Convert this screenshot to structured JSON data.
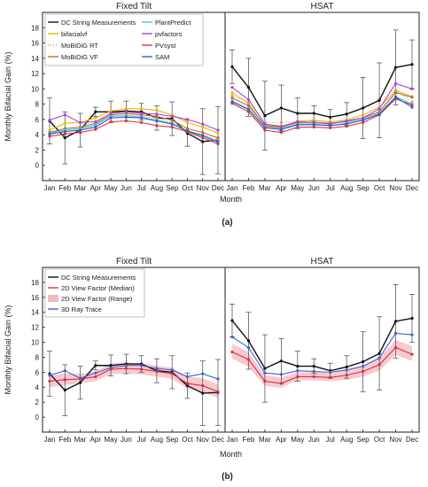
{
  "chart_data": [
    {
      "type": "line",
      "panel_label": "(a)",
      "subplots": [
        "Fixed Tilt",
        "HSAT"
      ],
      "xlabel": "Month",
      "ylabel": "Monthly Bifacial Gain (%)",
      "x": [
        "Jan",
        "Feb",
        "Mar",
        "Apr",
        "May",
        "Jun",
        "Jul",
        "Aug",
        "Sep",
        "Oct",
        "Nov",
        "Dec"
      ],
      "ylim": [
        -2,
        20
      ],
      "yticks": [
        0,
        2,
        4,
        6,
        8,
        10,
        12,
        14,
        16,
        18
      ],
      "grid": false,
      "legend_position": "top-left",
      "series": [
        {
          "name": "DC String Measurements",
          "color": "#111111",
          "dash": "",
          "fixed": [
            5.8,
            3.6,
            4.6,
            7.0,
            7.0,
            7.1,
            7.0,
            6.2,
            6.1,
            4.2,
            3.1,
            3.3
          ],
          "fixed_err": [
            3.0,
            3.4,
            2.2,
            0.6,
            1.4,
            1.3,
            1.1,
            1.6,
            2.2,
            1.7,
            4.3,
            4.4
          ],
          "hsat": [
            12.9,
            10.2,
            6.5,
            7.5,
            6.8,
            6.8,
            6.3,
            6.7,
            7.5,
            8.5,
            12.8,
            13.2
          ],
          "hsat_err": [
            2.2,
            3.8,
            4.5,
            3.0,
            2.0,
            1.0,
            1.0,
            1.5,
            4.0,
            4.9,
            4.9,
            3.2
          ]
        },
        {
          "name": "bifacialvf",
          "color": "#e8b800",
          "dash": "",
          "fixed": [
            4.6,
            5.5,
            5.6,
            6.2,
            7.1,
            7.4,
            7.4,
            7.2,
            6.6,
            5.6,
            5.0,
            4.2
          ],
          "hsat": [
            9.5,
            8.1,
            5.1,
            4.9,
            5.8,
            5.9,
            5.7,
            5.9,
            6.6,
            7.6,
            9.8,
            9.0
          ]
        },
        {
          "name": "MoBiDiG RT",
          "color": "#d4a060",
          "dash": "1,2",
          "fixed": [
            4.0,
            4.5,
            4.7,
            5.1,
            6.5,
            6.7,
            6.4,
            6.2,
            5.6,
            4.6,
            4.0,
            3.4
          ],
          "hsat": [
            9.1,
            8.2,
            5.6,
            5.6,
            5.7,
            5.7,
            5.6,
            5.9,
            6.2,
            7.0,
            9.8,
            8.3
          ]
        },
        {
          "name": "MoBiDiG VF",
          "color": "#b87030",
          "dash": "",
          "fixed": [
            4.3,
            4.8,
            5.0,
            5.5,
            6.6,
            6.8,
            6.6,
            6.4,
            5.9,
            4.8,
            4.3,
            3.6
          ],
          "hsat": [
            8.8,
            7.8,
            5.2,
            5.0,
            5.6,
            5.6,
            5.5,
            5.7,
            6.2,
            7.0,
            9.5,
            8.9
          ]
        },
        {
          "name": "PlantPredict",
          "color": "#40c8e0",
          "dash": "",
          "fixed": [
            4.2,
            4.6,
            4.8,
            5.3,
            6.4,
            6.5,
            6.3,
            5.9,
            5.5,
            4.4,
            3.8,
            3.0
          ],
          "hsat": [
            8.4,
            7.4,
            5.0,
            4.8,
            5.4,
            5.4,
            5.2,
            5.5,
            6.0,
            6.8,
            9.0,
            8.0
          ]
        },
        {
          "name": "pvfactors",
          "color": "#b040d8",
          "dash": "",
          "fixed": [
            5.9,
            6.6,
            5.6,
            5.7,
            6.8,
            7.0,
            6.8,
            6.7,
            6.4,
            6.0,
            5.4,
            4.6
          ],
          "hsat": [
            10.2,
            8.6,
            5.4,
            5.1,
            5.7,
            5.6,
            5.4,
            5.8,
            6.2,
            7.4,
            10.7,
            10.0
          ]
        },
        {
          "name": "PVsyst",
          "color": "#e03040",
          "dash": "",
          "fixed": [
            3.8,
            4.1,
            4.3,
            4.7,
            5.7,
            5.8,
            5.6,
            5.2,
            5.0,
            4.4,
            3.6,
            2.8
          ],
          "hsat": [
            8.1,
            7.0,
            4.6,
            4.3,
            5.0,
            5.0,
            4.9,
            5.1,
            5.6,
            6.6,
            8.7,
            7.9
          ]
        },
        {
          "name": "SAM",
          "color": "#3060d0",
          "dash": "",
          "fixed": [
            4.1,
            4.4,
            4.6,
            5.0,
            6.2,
            6.3,
            6.2,
            5.8,
            5.4,
            4.5,
            3.9,
            3.1
          ],
          "hsat": [
            8.3,
            7.3,
            4.9,
            4.7,
            5.3,
            5.3,
            5.2,
            5.4,
            5.9,
            6.7,
            8.9,
            7.6
          ]
        }
      ]
    },
    {
      "type": "line",
      "panel_label": "(b)",
      "subplots": [
        "Fixed Tilt",
        "HSAT"
      ],
      "xlabel": "Month",
      "ylabel": "Monthly Bifacial Gain (%)",
      "x": [
        "Jan",
        "Feb",
        "Mar",
        "Apr",
        "May",
        "Jun",
        "Jul",
        "Aug",
        "Sep",
        "Oct",
        "Nov",
        "Dec"
      ],
      "ylim": [
        -2,
        20
      ],
      "yticks": [
        0,
        2,
        4,
        6,
        8,
        10,
        12,
        14,
        16,
        18
      ],
      "grid": false,
      "legend_position": "top-left",
      "series": [
        {
          "name": "DC String Measurements",
          "color": "#111111",
          "fixed": [
            5.8,
            3.6,
            4.6,
            6.9,
            6.9,
            7.1,
            7.1,
            6.2,
            6.0,
            4.2,
            3.2,
            3.3
          ],
          "fixed_err": [
            3.0,
            3.4,
            2.2,
            0.6,
            1.4,
            1.3,
            1.1,
            1.6,
            2.2,
            1.7,
            4.3,
            4.4
          ],
          "hsat": [
            12.9,
            10.2,
            6.5,
            7.5,
            6.8,
            6.8,
            6.2,
            6.7,
            7.4,
            8.5,
            12.8,
            13.2
          ],
          "hsat_err": [
            2.2,
            3.8,
            4.5,
            3.0,
            2.0,
            1.0,
            1.0,
            1.5,
            4.0,
            4.9,
            4.9,
            3.2
          ]
        },
        {
          "name": "2D View Factor (Median)",
          "color": "#d83040",
          "fixed": [
            4.8,
            5.0,
            5.1,
            5.4,
            6.4,
            6.5,
            6.4,
            6.1,
            5.8,
            4.5,
            4.2,
            3.4
          ],
          "hsat": [
            8.7,
            7.7,
            4.8,
            4.5,
            5.4,
            5.4,
            5.3,
            5.6,
            6.1,
            7.0,
            9.3,
            8.4
          ]
        },
        {
          "name": "2D View Factor (Range)",
          "color": "#f4b8c0",
          "fixed_lo": [
            4.0,
            4.3,
            4.5,
            4.8,
            5.7,
            5.8,
            5.7,
            5.4,
            5.1,
            3.8,
            3.4,
            2.6
          ],
          "fixed_hi": [
            5.6,
            5.8,
            5.8,
            6.1,
            7.2,
            7.3,
            7.2,
            6.9,
            6.6,
            5.4,
            5.2,
            4.4
          ],
          "hsat_lo": [
            7.8,
            6.7,
            4.2,
            3.9,
            4.9,
            4.9,
            4.8,
            5.0,
            5.4,
            6.2,
            8.3,
            7.5
          ],
          "hsat_hi": [
            9.8,
            8.7,
            5.6,
            5.3,
            6.0,
            6.0,
            5.9,
            6.3,
            6.9,
            7.9,
            10.3,
            9.5
          ]
        },
        {
          "name": "3D Ray Trace",
          "color": "#4060d0",
          "fixed": [
            5.6,
            6.2,
            5.2,
            5.9,
            6.6,
            6.9,
            6.9,
            6.5,
            6.3,
            5.4,
            5.8,
            5.1
          ],
          "hsat": [
            10.7,
            9.3,
            5.9,
            5.7,
            6.2,
            6.1,
            6.0,
            6.3,
            6.8,
            7.9,
            11.2,
            11.0
          ]
        }
      ]
    }
  ]
}
